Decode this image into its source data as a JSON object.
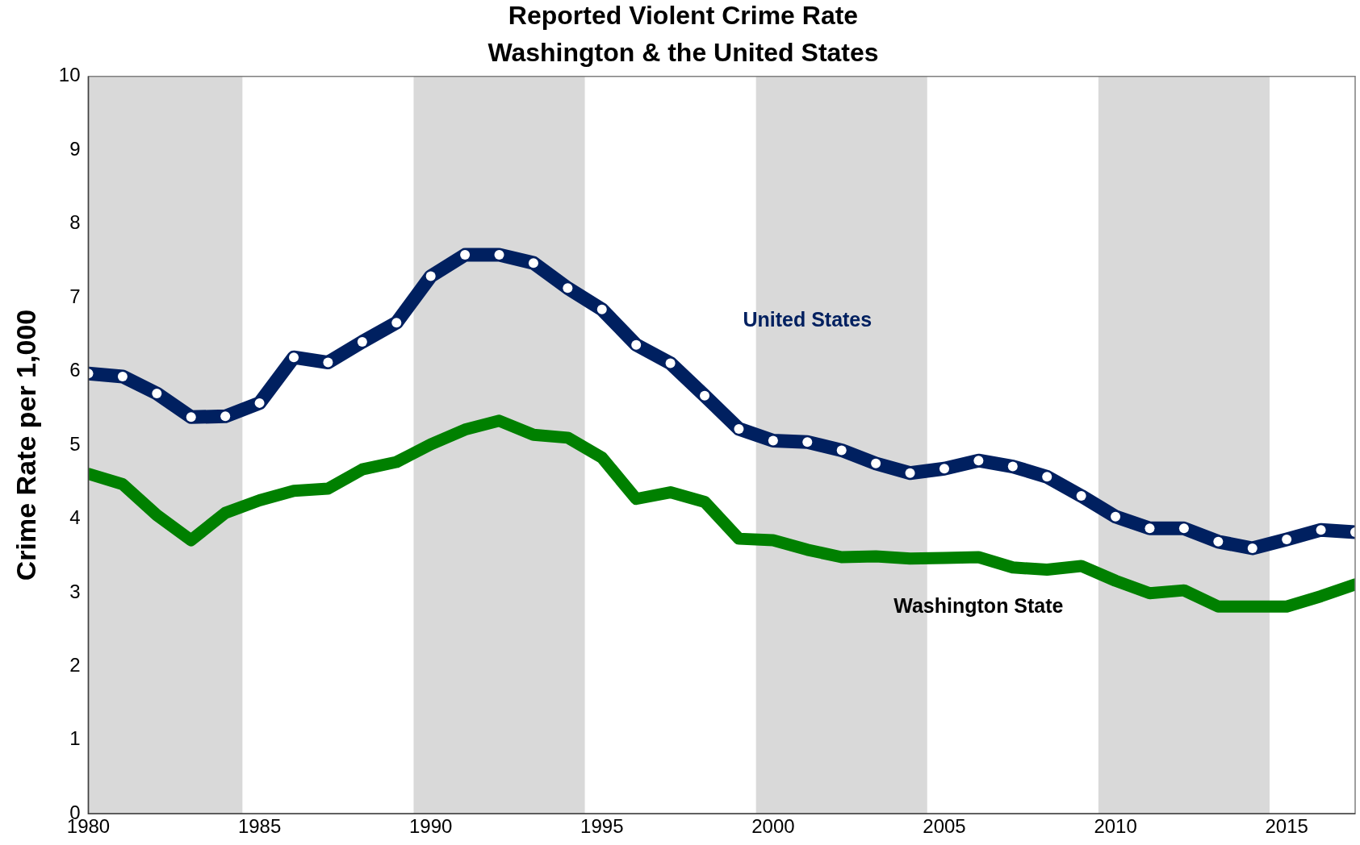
{
  "chart_data": {
    "type": "line",
    "title": "Reported Violent Crime Rate",
    "subtitle": "Washington & the United States",
    "ylabel": "Crime Rate per 1,000",
    "x": [
      1980,
      1981,
      1982,
      1983,
      1984,
      1985,
      1986,
      1987,
      1988,
      1989,
      1990,
      1991,
      1992,
      1993,
      1994,
      1995,
      1996,
      1997,
      1998,
      1999,
      2000,
      2001,
      2002,
      2003,
      2004,
      2005,
      2006,
      2007,
      2008,
      2009,
      2010,
      2011,
      2012,
      2013,
      2014,
      2015,
      2016,
      2017
    ],
    "series": [
      {
        "name": "United States",
        "color": "#002060",
        "marker": "circle",
        "values": [
          5.97,
          5.93,
          5.7,
          5.38,
          5.39,
          5.57,
          6.19,
          6.12,
          6.4,
          6.66,
          7.29,
          7.58,
          7.58,
          7.47,
          7.13,
          6.84,
          6.36,
          6.11,
          5.67,
          5.22,
          5.06,
          5.04,
          4.93,
          4.75,
          4.62,
          4.68,
          4.79,
          4.71,
          4.57,
          4.31,
          4.03,
          3.87,
          3.87,
          3.69,
          3.6,
          3.72,
          3.85,
          3.82
        ]
      },
      {
        "name": "Washington State",
        "color": "#008000",
        "marker": "none",
        "values": [
          4.61,
          4.47,
          4.05,
          3.71,
          4.08,
          4.25,
          4.38,
          4.41,
          4.67,
          4.77,
          5.01,
          5.21,
          5.33,
          5.14,
          5.1,
          4.83,
          4.27,
          4.36,
          4.23,
          3.73,
          3.71,
          3.58,
          3.48,
          3.49,
          3.46,
          3.47,
          3.48,
          3.34,
          3.31,
          3.36,
          3.16,
          2.99,
          3.03,
          2.81,
          2.81,
          2.81,
          2.95,
          3.11
        ]
      }
    ],
    "xlim": [
      1980,
      2017
    ],
    "xticks": [
      1980,
      1985,
      1990,
      1995,
      2000,
      2005,
      2010,
      2015
    ],
    "ylim": [
      0,
      10
    ],
    "yticks": [
      0,
      1,
      2,
      3,
      4,
      5,
      6,
      7,
      8,
      9,
      10
    ],
    "bands": [
      {
        "axis": "x",
        "from": 1980,
        "to": 1984.5,
        "color": "#d9d9d9"
      },
      {
        "axis": "x",
        "from": 1989.5,
        "to": 1994.5,
        "color": "#d9d9d9"
      },
      {
        "axis": "x",
        "from": 1999.5,
        "to": 2004.5,
        "color": "#d9d9d9"
      },
      {
        "axis": "x",
        "from": 2009.5,
        "to": 2014.5,
        "color": "#d9d9d9"
      }
    ],
    "grid": false,
    "legend": false,
    "line_style": "solid"
  }
}
